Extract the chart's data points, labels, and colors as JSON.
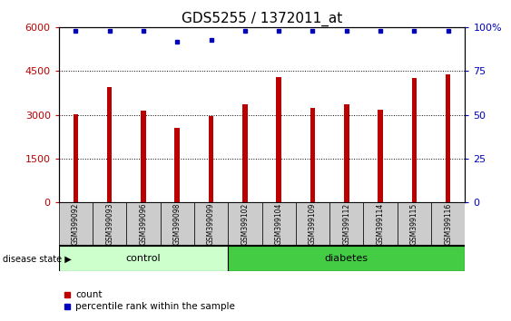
{
  "title": "GDS5255 / 1372011_at",
  "samples": [
    "GSM399092",
    "GSM399093",
    "GSM399096",
    "GSM399098",
    "GSM399099",
    "GSM399102",
    "GSM399104",
    "GSM399109",
    "GSM399112",
    "GSM399114",
    "GSM399115",
    "GSM399116"
  ],
  "counts": [
    3020,
    3950,
    3150,
    2550,
    2960,
    3370,
    4280,
    3220,
    3370,
    3180,
    4270,
    4380
  ],
  "percentile_ranks": [
    98,
    98,
    98,
    92,
    93,
    98,
    98,
    98,
    98,
    98,
    98,
    98
  ],
  "bar_color": "#bb0000",
  "dot_color": "#0000bb",
  "ylim_left": [
    0,
    6000
  ],
  "ylim_right": [
    0,
    100
  ],
  "yticks_left": [
    0,
    1500,
    3000,
    4500,
    6000
  ],
  "yticks_right": [
    0,
    25,
    50,
    75,
    100
  ],
  "n_control": 5,
  "n_diabetes": 7,
  "control_color": "#ccffcc",
  "diabetes_color": "#44cc44",
  "sample_bg_color": "#cccccc",
  "disease_label": "disease state",
  "control_label": "control",
  "diabetes_label": "diabetes",
  "legend_count_label": "count",
  "legend_percentile_label": "percentile rank within the sample",
  "title_fontsize": 11,
  "tick_fontsize": 8,
  "bar_width": 0.15
}
